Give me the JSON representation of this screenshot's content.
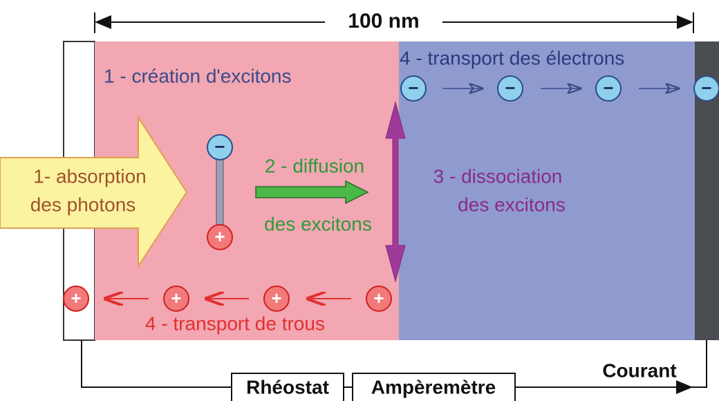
{
  "dimension": "100 nm",
  "zones": {
    "exciton_creation": "1 - création d'excitons",
    "electron_transport": "4 - transport des électrons",
    "hole_transport": "4 - transport de trous"
  },
  "absorption": [
    "1- absorption",
    "des photons"
  ],
  "diffusion": [
    "2 - diffusion",
    "des excitons"
  ],
  "dissociation": [
    "3 - dissociation",
    "des excitons"
  ],
  "circuit": {
    "rheostat": "Rhéostat",
    "ammeter": "Ampèremètre",
    "current": "Courant"
  },
  "symbols": {
    "electron": "−",
    "hole": "+"
  }
}
